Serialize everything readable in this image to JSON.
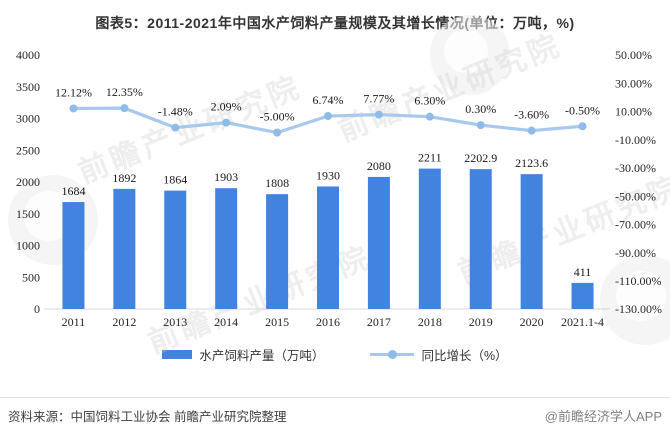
{
  "title": "图表5：2011-2021年中国水产饲料产量规模及其增长情况(单位：万吨，%)",
  "chart_data": {
    "type": "bar",
    "categories": [
      "2011",
      "2012",
      "2013",
      "2014",
      "2015",
      "2016",
      "2017",
      "2018",
      "2019",
      "2020",
      "2021.1-4"
    ],
    "series": [
      {
        "name": "水产饲料产量（万吨）",
        "type": "bar",
        "axis": "left",
        "values": [
          1684,
          1892,
          1864,
          1903,
          1808,
          1930,
          2080,
          2211,
          2202.9,
          2123.6,
          411
        ],
        "labels": [
          "1684",
          "1892",
          "1864",
          "1903",
          "1808",
          "1930",
          "2080",
          "2211",
          "2202.9",
          "2123.6",
          "411"
        ]
      },
      {
        "name": "同比增长（%）",
        "type": "line",
        "axis": "right",
        "values": [
          12.12,
          12.35,
          -1.48,
          2.09,
          -5.0,
          6.74,
          7.77,
          6.3,
          0.3,
          -3.6,
          -0.5
        ],
        "labels": [
          "12.12%",
          "12.35%",
          "-1.48%",
          "2.09%",
          "-5.00%",
          "6.74%",
          "7.77%",
          "6.30%",
          "0.30%",
          "-3.60%",
          "-0.50%"
        ]
      }
    ],
    "left_axis": {
      "min": 0,
      "max": 4000,
      "ticks": [
        "4000",
        "3500",
        "3000",
        "2500",
        "2000",
        "1500",
        "1000",
        "500",
        "0"
      ]
    },
    "right_axis": {
      "min": -130,
      "max": 50,
      "ticks": [
        "50.00%",
        "30.00%",
        "10.00%",
        "-10.00%",
        "-30.00%",
        "-50.00%",
        "-70.00%",
        "-90.00%",
        "-110.00%",
        "-130.00%"
      ]
    },
    "grid": false,
    "legend_position": "bottom"
  },
  "legend": [
    {
      "label": "水产饲料产量（万吨）",
      "swatch": "bar-swatch"
    },
    {
      "label": "同比增长（%）",
      "swatch": "line-swatch"
    }
  ],
  "footer": {
    "source": "资料来源：中国饲料工业协会 前瞻产业研究院整理",
    "brand": "@前瞻经济学人APP"
  },
  "watermark": {
    "text": "前瞻产业研究院"
  },
  "colors": {
    "bar": "#4183DF",
    "line": "#A6C9ED",
    "marker": "#8FBBE8",
    "axis_line": "#D9D9D9",
    "tick_text": "#262626",
    "label_text": "#1a1a1a"
  }
}
